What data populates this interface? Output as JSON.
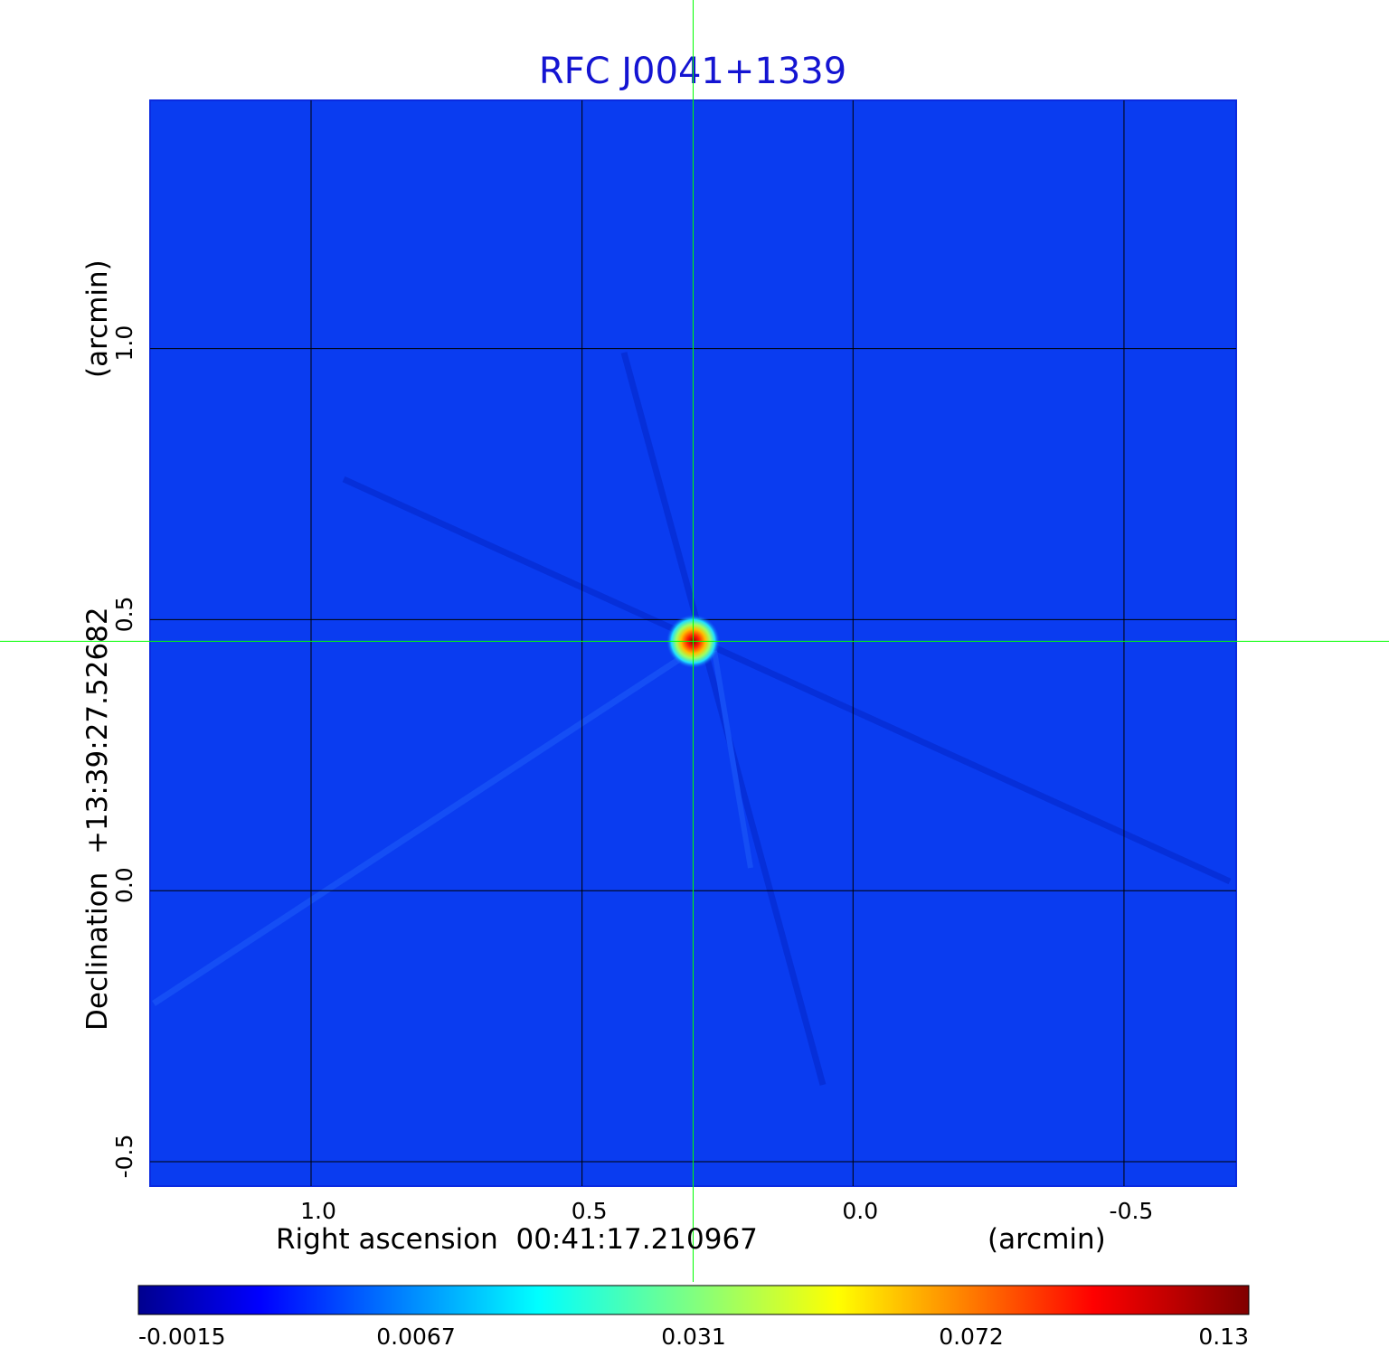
{
  "chart_data": {
    "type": "heatmap",
    "title": "RFC J0041+1339",
    "xlabel_left": "Right ascension  00:41:17.210967",
    "xlabel_right": "(arcmin)",
    "ylabel_left": "Declination  +13:39:27.52682",
    "ylabel_right": "(arcmin)",
    "x_ticks": [
      {
        "value": 1.0,
        "label": "1.0"
      },
      {
        "value": 0.5,
        "label": "0.5"
      },
      {
        "value": 0.0,
        "label": "0.0"
      },
      {
        "value": -0.5,
        "label": "-0.5"
      }
    ],
    "y_ticks": [
      {
        "value": 1.0,
        "label": "1.0"
      },
      {
        "value": 0.5,
        "label": "0.5"
      },
      {
        "value": 0.0,
        "label": "0.0"
      },
      {
        "value": -0.5,
        "label": "-0.5"
      }
    ],
    "xlim": [
      1.297,
      -0.707
    ],
    "ylim": [
      -0.545,
      1.458
    ],
    "grid": true,
    "colormap": "jet",
    "colorbar": {
      "position": "bottom",
      "ticks": [
        {
          "value": -0.0015,
          "label": "-0.0015"
        },
        {
          "value": 0.0067,
          "label": "0.0067"
        },
        {
          "value": 0.031,
          "label": "0.031"
        },
        {
          "value": 0.072,
          "label": "0.072"
        },
        {
          "value": 0.13,
          "label": "0.13"
        }
      ]
    },
    "source": {
      "x": 0.295,
      "y": 0.46,
      "peak": 0.13
    },
    "crosshair": {
      "x": 0.295,
      "y": 0.46,
      "color": "#00ff00"
    },
    "colors": {
      "title": "#1414d2",
      "background": "#0a3cf0",
      "grid": "#000000"
    }
  }
}
